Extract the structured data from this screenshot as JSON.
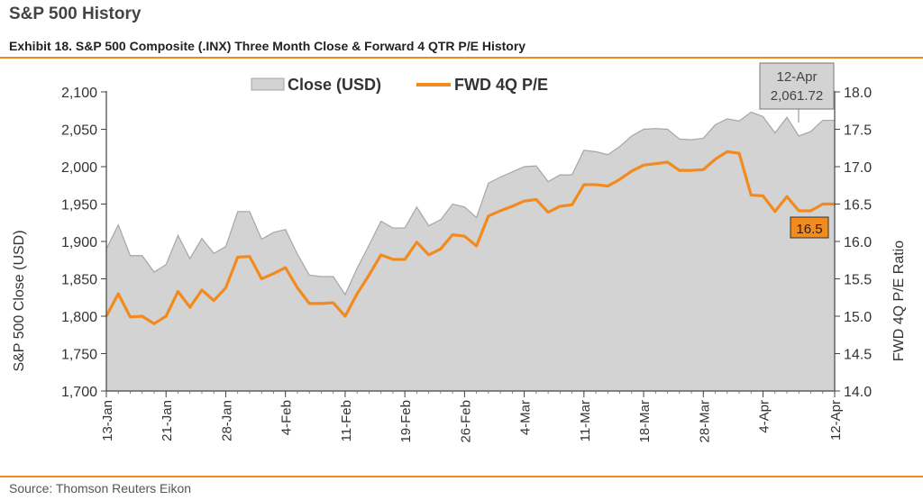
{
  "page_title": "S&P 500 History",
  "exhibit_title": "Exhibit 18. S&P 500 Composite (.INX) Three Month Close & Forward 4 QTR P/E History",
  "source": "Source: Thomson Reuters Eikon",
  "colors": {
    "area": "#d3d3d3",
    "area_edge": "#a6a6a6",
    "line": "#f28a1e",
    "rule": "#f28a1e"
  },
  "chart_data": {
    "type": "area+line",
    "legend": {
      "position": "top",
      "close_label": "Close (USD)",
      "pe_label": "FWD 4Q P/E"
    },
    "ylabel_left": "S&P 500 Close (USD)",
    "ylabel_right": "FWD 4Q P/E Ratio",
    "ylim_left": [
      1700,
      2100
    ],
    "ylim_right": [
      14.0,
      18.0
    ],
    "yticks_left": [
      "1,700",
      "1,750",
      "1,800",
      "1,850",
      "1,900",
      "1,950",
      "2,000",
      "2,050",
      "2,100"
    ],
    "yticks_right": [
      "14.0",
      "14.5",
      "15.0",
      "15.5",
      "16.0",
      "16.5",
      "17.0",
      "17.5",
      "18.0"
    ],
    "x_tick_labels": [
      {
        "label": "13-Jan",
        "index": 0
      },
      {
        "label": "21-Jan",
        "index": 5
      },
      {
        "label": "28-Jan",
        "index": 10
      },
      {
        "label": "4-Feb",
        "index": 15
      },
      {
        "label": "11-Feb",
        "index": 20
      },
      {
        "label": "19-Feb",
        "index": 25
      },
      {
        "label": "26-Feb",
        "index": 30
      },
      {
        "label": "4-Mar",
        "index": 35
      },
      {
        "label": "11-Mar",
        "index": 40
      },
      {
        "label": "18-Mar",
        "index": 45
      },
      {
        "label": "28-Mar",
        "index": 50
      },
      {
        "label": "4-Apr",
        "index": 55
      },
      {
        "label": "12-Apr",
        "index": 61
      }
    ],
    "close": [
      1890,
      1922,
      1881,
      1881,
      1859,
      1869,
      1908,
      1877,
      1904,
      1884,
      1893,
      1940,
      1940,
      1903,
      1912,
      1916,
      1883,
      1855,
      1853,
      1853,
      1829,
      1864,
      1895,
      1927,
      1918,
      1918,
      1946,
      1921,
      1929,
      1950,
      1946,
      1932,
      1978,
      1986,
      1993,
      2000,
      2001,
      1980,
      1989,
      1989,
      2022,
      2020,
      2016,
      2027,
      2041,
      2050,
      2051,
      2050,
      2037,
      2036,
      2038,
      2056,
      2064,
      2061,
      2073,
      2067,
      2045,
      2066,
      2041,
      2047,
      2062,
      2062
    ],
    "pe": [
      15.0,
      15.3,
      14.99,
      15.0,
      14.9,
      15.0,
      15.33,
      15.12,
      15.35,
      15.21,
      15.38,
      15.79,
      15.8,
      15.5,
      15.57,
      15.65,
      15.38,
      15.17,
      15.17,
      15.18,
      15.0,
      15.3,
      15.55,
      15.82,
      15.76,
      15.76,
      15.99,
      15.82,
      15.9,
      16.09,
      16.07,
      15.94,
      16.34,
      16.41,
      16.47,
      16.54,
      16.56,
      16.39,
      16.47,
      16.49,
      16.76,
      16.76,
      16.74,
      16.83,
      16.94,
      17.02,
      17.04,
      17.06,
      16.95,
      16.95,
      16.96,
      17.1,
      17.2,
      17.18,
      16.62,
      16.61,
      16.4,
      16.6,
      16.41,
      16.41,
      16.5,
      16.5
    ],
    "callouts": {
      "close_date": "12-Apr",
      "close_value": "2,061.72",
      "pe_value": "16.5"
    }
  }
}
